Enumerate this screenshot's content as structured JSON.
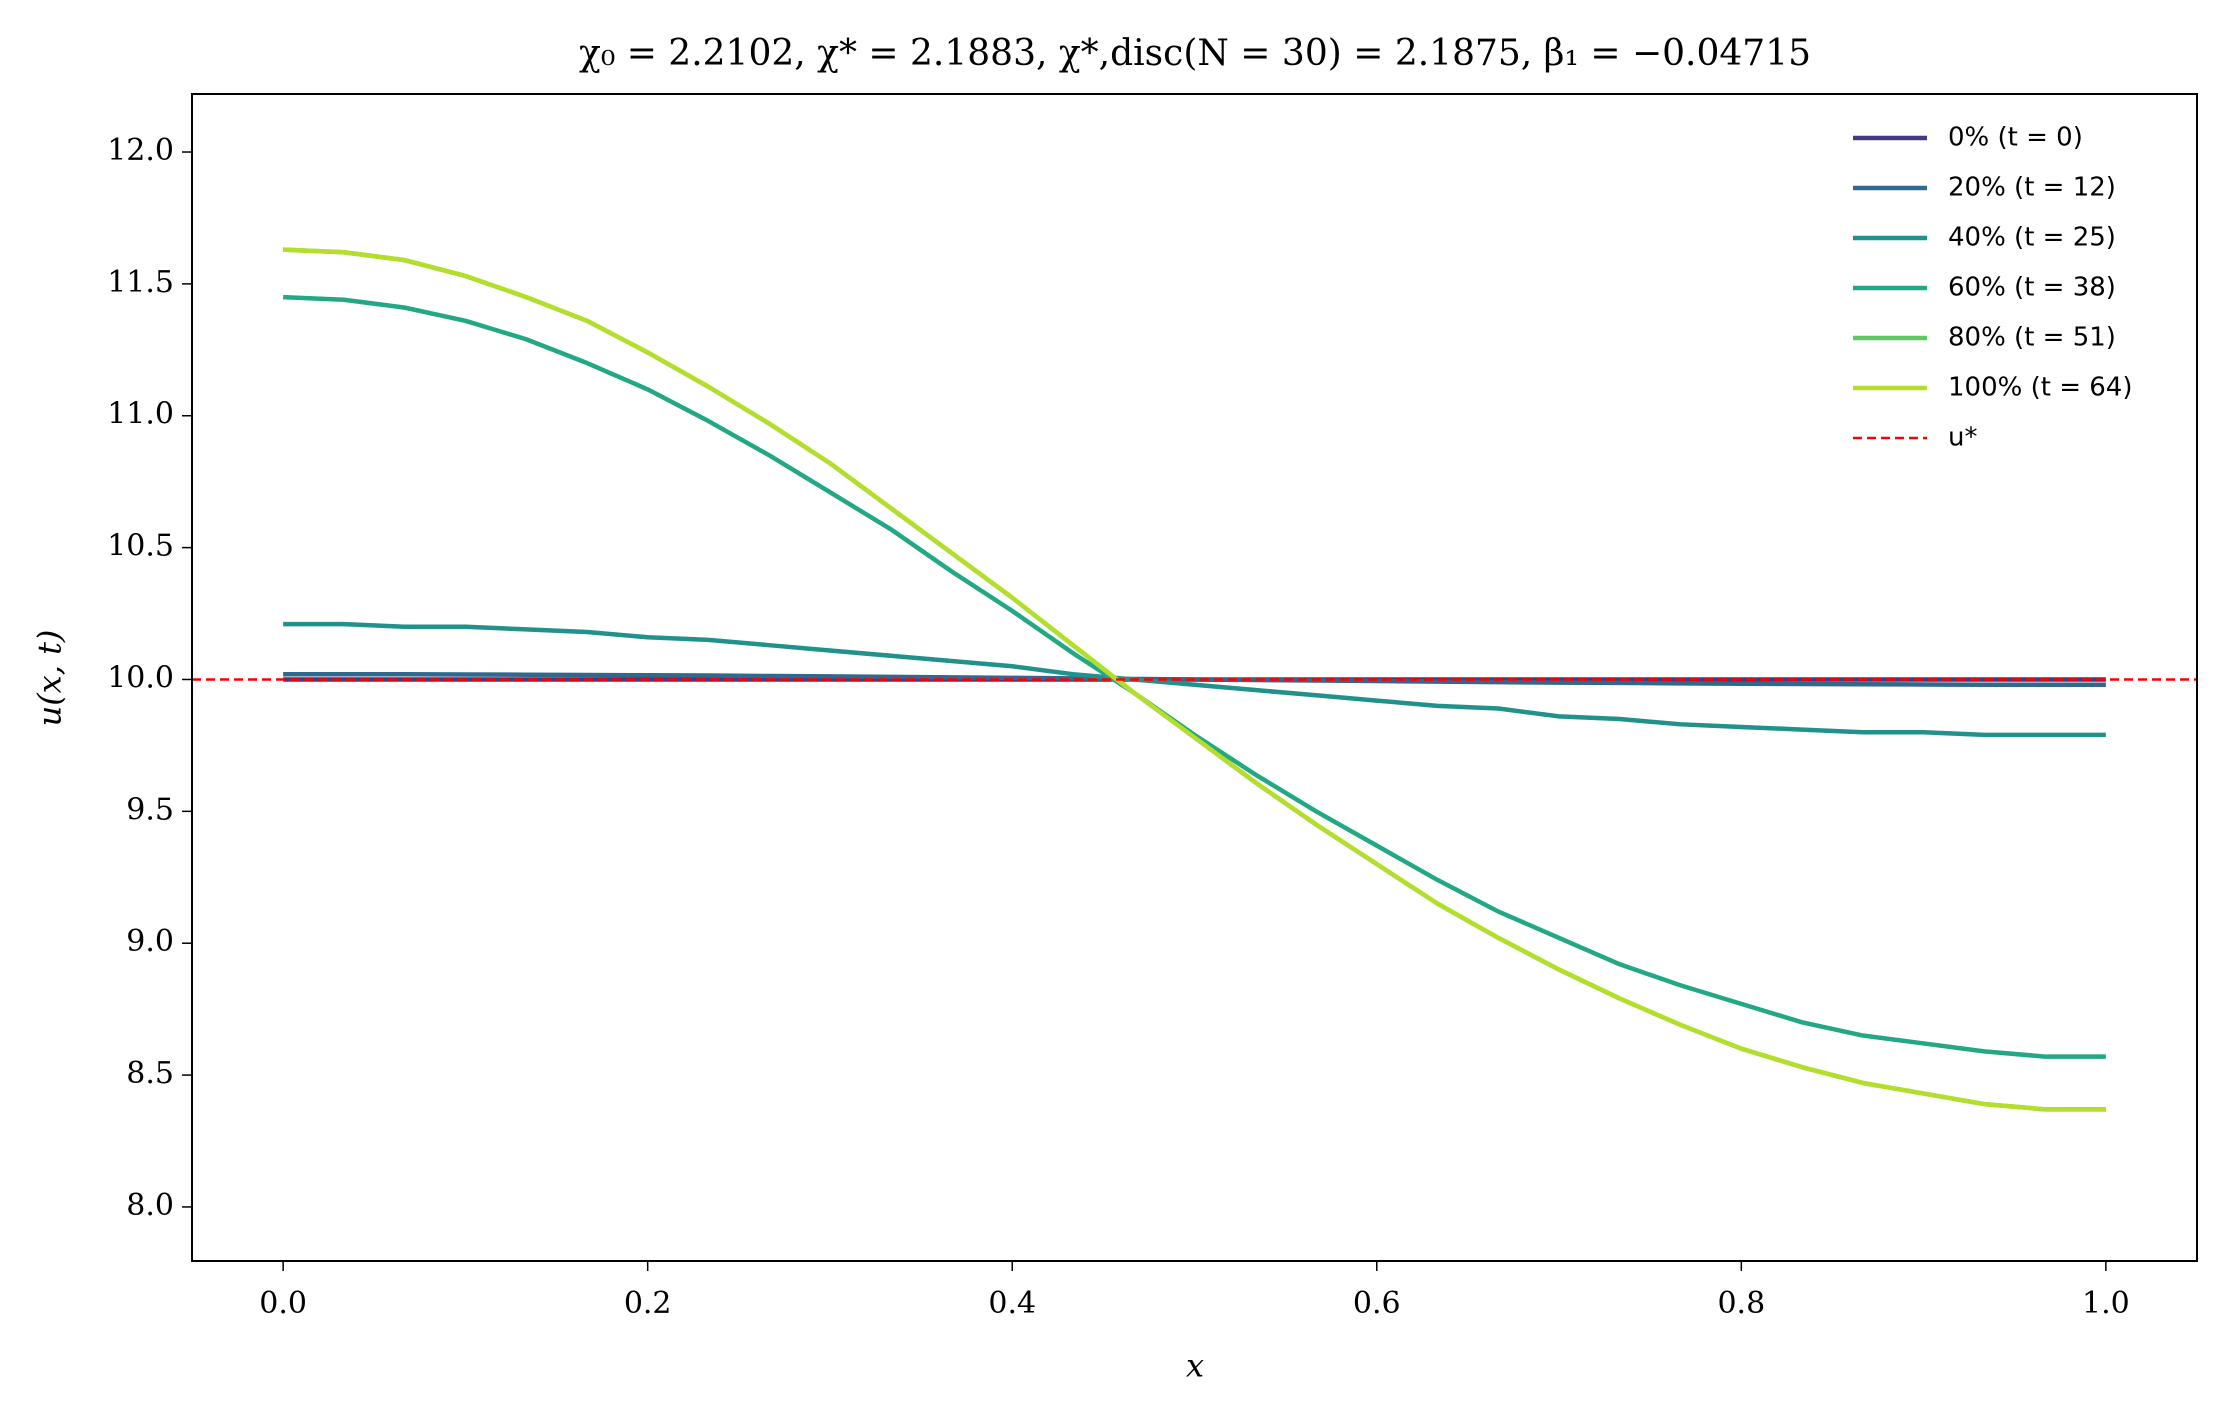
{
  "chart_data": {
    "type": "line",
    "title": "χ₀ = 2.2102,  χ* = 2.1883,  χ*,disc(N = 30) = 2.1875,  β₁ = −0.04715",
    "x_label": "x",
    "y_label": "u(x, t)",
    "xlim": [
      -0.05,
      1.05
    ],
    "ylim": [
      7.795,
      12.22
    ],
    "xticks": [
      {
        "value": 0,
        "label": "0.0"
      },
      0.2,
      0.4,
      0.6,
      0.8,
      {
        "value": 1,
        "label": "1.0"
      }
    ],
    "yticks": [
      {
        "value": 8,
        "label": "8.0"
      },
      8.5,
      {
        "value": 9,
        "label": "9.0"
      },
      9.5,
      {
        "value": 10,
        "label": "10.0"
      },
      10.5,
      {
        "value": 11,
        "label": "11.0"
      },
      11.5,
      {
        "value": 12,
        "label": "12.0"
      }
    ],
    "legend_position": "upper right",
    "x": [
      0,
      0.0333,
      0.0667,
      0.1,
      0.1333,
      0.1667,
      0.2,
      0.2333,
      0.2667,
      0.3,
      0.3333,
      0.3667,
      0.4,
      0.4333,
      0.4667,
      0.5,
      0.5333,
      0.5667,
      0.6,
      0.6333,
      0.6667,
      0.7,
      0.7333,
      0.7667,
      0.8,
      0.8333,
      0.8667,
      0.9,
      0.9333,
      0.9667,
      1
    ],
    "series": [
      {
        "name": "0% (t = 0)",
        "color": "#443983",
        "values": [
          10,
          10,
          10,
          10,
          10,
          10,
          10,
          10,
          10,
          10,
          10,
          10,
          10,
          10,
          10,
          10,
          10,
          10,
          10,
          10,
          10,
          10,
          10,
          10,
          10,
          10,
          10,
          10,
          10,
          10,
          10
        ]
      },
      {
        "name": "20% (t = 12)",
        "color": "#31688e",
        "values": [
          10.02,
          10.02,
          10.02,
          10.019,
          10.018,
          10.017,
          10.016,
          10.015,
          10.013,
          10.012,
          10.01,
          10.008,
          10.006,
          10.004,
          10.002,
          10,
          9.998,
          9.996,
          9.994,
          9.992,
          9.99,
          9.988,
          9.987,
          9.985,
          9.984,
          9.983,
          9.982,
          9.981,
          9.98,
          9.98,
          9.98
        ]
      },
      {
        "name": "40% (t = 25)",
        "color": "#21918c",
        "values": [
          10.21,
          10.21,
          10.2,
          10.2,
          10.19,
          10.18,
          10.16,
          10.15,
          10.13,
          10.11,
          10.09,
          10.07,
          10.05,
          10.02,
          10.0,
          9.98,
          9.96,
          9.94,
          9.92,
          9.9,
          9.89,
          9.86,
          9.85,
          9.83,
          9.82,
          9.81,
          9.8,
          9.8,
          9.79,
          9.79,
          9.79
        ]
      },
      {
        "name": "60% (t = 38)",
        "color": "#22a884",
        "values": [
          11.45,
          11.44,
          11.41,
          11.36,
          11.29,
          11.2,
          11.1,
          10.98,
          10.85,
          10.71,
          10.57,
          10.41,
          10.26,
          10.1,
          9.95,
          9.79,
          9.64,
          9.5,
          9.37,
          9.24,
          9.12,
          9.02,
          8.92,
          8.84,
          8.77,
          8.7,
          8.65,
          8.62,
          8.59,
          8.57,
          8.57
        ]
      },
      {
        "name": "80% (t = 51)",
        "color": "#5ec962",
        "values": [
          11.63,
          11.62,
          11.59,
          11.53,
          11.45,
          11.36,
          11.24,
          11.11,
          10.97,
          10.82,
          10.65,
          10.48,
          10.31,
          10.13,
          9.95,
          9.78,
          9.61,
          9.45,
          9.3,
          9.15,
          9.02,
          8.9,
          8.79,
          8.69,
          8.6,
          8.53,
          8.47,
          8.43,
          8.39,
          8.37,
          8.37
        ]
      },
      {
        "name": "100% (t = 64)",
        "color": "#b5de2b",
        "values": [
          11.63,
          11.62,
          11.59,
          11.53,
          11.45,
          11.36,
          11.24,
          11.11,
          10.97,
          10.82,
          10.65,
          10.48,
          10.31,
          10.13,
          9.95,
          9.78,
          9.61,
          9.45,
          9.3,
          9.15,
          9.02,
          8.9,
          8.79,
          8.69,
          8.6,
          8.53,
          8.47,
          8.43,
          8.39,
          8.37,
          8.37
        ]
      }
    ],
    "reference_lines": [
      {
        "name": "u*",
        "value": 10,
        "color": "#ff0000",
        "style": "dashed"
      }
    ]
  }
}
